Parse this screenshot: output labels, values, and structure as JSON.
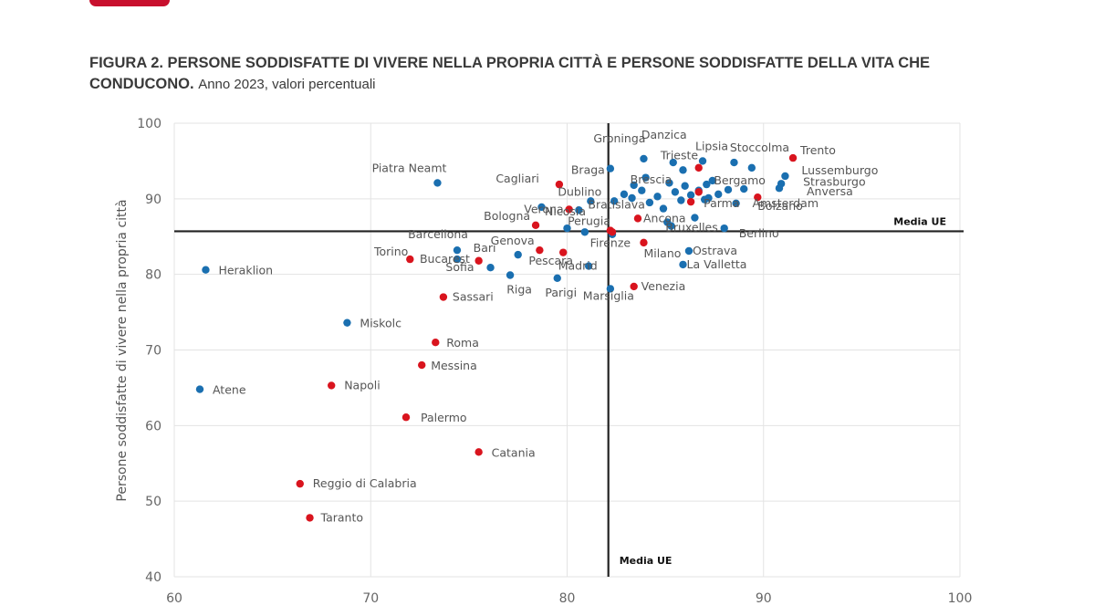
{
  "title": {
    "main": "FIGURA 2. PERSONE SODDISFATTE DI VIVERE NELLA PROPRIA CITTÀ E PERSONE SODDISFATTE DELLA VITA CHE CONDUCONO.",
    "subtitle": "Anno 2023, valori percentuali"
  },
  "colors": {
    "eu": "#1a6fb0",
    "italy": "#d9141e",
    "axis": "#222222",
    "grid": "#e3e3e3",
    "tick": "#666666",
    "label": "#555555"
  },
  "chart_data": {
    "type": "scatter",
    "title": "FIGURA 2. PERSONE SODDISFATTE DI VIVERE NELLA PROPRIA CITTÀ E PERSONE SODDISFATTE DELLA VITA CHE CONDUCONO.",
    "subtitle": "Anno 2023, valori percentuali",
    "ylabel": "Persone soddisfatte di vivere nella propria città",
    "xlim": [
      60,
      100
    ],
    "ylim": [
      40,
      100
    ],
    "xticks": [
      60,
      70,
      80,
      90,
      100
    ],
    "yticks": [
      40,
      50,
      60,
      70,
      80,
      90,
      100
    ],
    "grid": true,
    "reference_lines": [
      {
        "axis": "y",
        "value": 85.7,
        "label": "Media UE"
      },
      {
        "axis": "x",
        "value": 82.1,
        "label": "Media UE"
      }
    ],
    "series": [
      {
        "points": [
          {
            "label": "Heraklion",
            "x": 61.6,
            "y": 80.6
          },
          {
            "label": "Atene",
            "x": 61.3,
            "y": 64.8
          },
          {
            "label": "Miskolc",
            "x": 68.8,
            "y": 73.6
          },
          {
            "label": "Piatra Neamt",
            "x": 73.4,
            "y": 92.1
          },
          {
            "label": "Barcellona",
            "x": 74.4,
            "y": 83.2
          },
          {
            "label": "Bucarest",
            "x": 74.4,
            "y": 82.0
          },
          {
            "label": "Sofia",
            "x": 76.1,
            "y": 80.9
          },
          {
            "label": "Riga",
            "x": 77.1,
            "y": 79.9
          },
          {
            "label": "Genova",
            "x": 77.5,
            "y": 82.6
          },
          {
            "label": "Parigi",
            "x": 79.5,
            "y": 79.5
          },
          {
            "label": "Nicosia",
            "x": 80.0,
            "y": 86.1
          },
          {
            "label": "Madrid",
            "x": 81.1,
            "y": 81.1
          },
          {
            "label": "Marsiglia",
            "x": 82.2,
            "y": 78.1
          },
          {
            "label": "Braga",
            "x": 82.2,
            "y": 94.0
          },
          {
            "label": "Bratislava",
            "x": 80.6,
            "y": 88.5
          },
          {
            "label": "Dublino",
            "x": 81.2,
            "y": 89.7
          },
          {
            "label": "Groninga",
            "x": 83.9,
            "y": 95.3
          },
          {
            "label": "Danzica",
            "x": 85.4,
            "y": 94.8
          },
          {
            "label": "Trieste",
            "x": 85.9,
            "y": 93.8
          },
          {
            "label": "Lipsia",
            "x": 86.9,
            "y": 95.0
          },
          {
            "label": "Stoccolma",
            "x": 88.5,
            "y": 94.8
          },
          {
            "label": "Brescia",
            "x": 83.4,
            "y": 91.8
          },
          {
            "label": "Bergamo",
            "x": 87.1,
            "y": 91.9
          },
          {
            "label": "Lussemburgo",
            "x": 91.1,
            "y": 93.0
          },
          {
            "label": "Strasburgo",
            "x": 90.9,
            "y": 92.0
          },
          {
            "label": "Anversa",
            "x": 90.8,
            "y": 91.4
          },
          {
            "label": "Amsterdam",
            "x": 87.2,
            "y": 90.1
          },
          {
            "label": "Bruxelles",
            "x": 85.1,
            "y": 86.9
          },
          {
            "label": "Berlino",
            "x": 88.0,
            "y": 86.1
          },
          {
            "label": "Ostrava",
            "x": 86.2,
            "y": 83.1
          },
          {
            "label": "La Valletta",
            "x": 85.9,
            "y": 81.3
          },
          {
            "label": "",
            "x": 78.7,
            "y": 88.9
          },
          {
            "label": "",
            "x": 80.9,
            "y": 85.6
          },
          {
            "label": "",
            "x": 82.3,
            "y": 85.3
          },
          {
            "label": "",
            "x": 82.4,
            "y": 89.7
          },
          {
            "label": "",
            "x": 82.9,
            "y": 90.6
          },
          {
            "label": "",
            "x": 83.3,
            "y": 90.1
          },
          {
            "label": "",
            "x": 83.8,
            "y": 91.1
          },
          {
            "label": "",
            "x": 84.2,
            "y": 89.5
          },
          {
            "label": "",
            "x": 84.6,
            "y": 90.3
          },
          {
            "label": "",
            "x": 84.9,
            "y": 88.7
          },
          {
            "label": "",
            "x": 85.2,
            "y": 92.1
          },
          {
            "label": "",
            "x": 85.5,
            "y": 90.9
          },
          {
            "label": "",
            "x": 85.8,
            "y": 89.8
          },
          {
            "label": "",
            "x": 86.0,
            "y": 91.7
          },
          {
            "label": "",
            "x": 86.3,
            "y": 90.5
          },
          {
            "label": "",
            "x": 86.5,
            "y": 87.5
          },
          {
            "label": "",
            "x": 86.7,
            "y": 91.1
          },
          {
            "label": "",
            "x": 87.0,
            "y": 89.9
          },
          {
            "label": "",
            "x": 87.4,
            "y": 92.4
          },
          {
            "label": "",
            "x": 87.7,
            "y": 90.6
          },
          {
            "label": "",
            "x": 88.2,
            "y": 91.2
          },
          {
            "label": "",
            "x": 88.6,
            "y": 89.4
          },
          {
            "label": "",
            "x": 89.0,
            "y": 91.3
          },
          {
            "label": "",
            "x": 89.4,
            "y": 94.1
          },
          {
            "label": "",
            "x": 84.0,
            "y": 92.8
          },
          {
            "label": "",
            "x": 85.3,
            "y": 86.4
          }
        ]
      },
      {
        "points": [
          {
            "label": "Trento",
            "x": 91.5,
            "y": 95.4
          },
          {
            "label": "Bolzano",
            "x": 89.7,
            "y": 90.2
          },
          {
            "label": "Parma",
            "x": 86.3,
            "y": 89.6
          },
          {
            "label": "Ancona",
            "x": 83.6,
            "y": 87.4
          },
          {
            "label": "Perugia",
            "x": 82.3,
            "y": 85.6
          },
          {
            "label": "Firenze",
            "x": 82.2,
            "y": 85.8
          },
          {
            "label": "Milano",
            "x": 83.9,
            "y": 84.2
          },
          {
            "label": "Venezia",
            "x": 83.4,
            "y": 78.4
          },
          {
            "label": "Cagliari",
            "x": 79.6,
            "y": 91.9
          },
          {
            "label": "Verona",
            "x": 80.1,
            "y": 88.6
          },
          {
            "label": "Bologna",
            "x": 78.4,
            "y": 86.5
          },
          {
            "label": "Pescara",
            "x": 78.6,
            "y": 83.2
          },
          {
            "label": "Bari",
            "x": 75.5,
            "y": 81.8
          },
          {
            "label": "Torino",
            "x": 72.0,
            "y": 82.0
          },
          {
            "label": "Sassari",
            "x": 73.7,
            "y": 77.0
          },
          {
            "label": "Roma",
            "x": 73.3,
            "y": 71.0
          },
          {
            "label": "Messina",
            "x": 72.6,
            "y": 68.0
          },
          {
            "label": "Napoli",
            "x": 68.0,
            "y": 65.3
          },
          {
            "label": "Palermo",
            "x": 71.8,
            "y": 61.1
          },
          {
            "label": "Catania",
            "x": 75.5,
            "y": 56.5
          },
          {
            "label": "Reggio di Calabria",
            "x": 66.4,
            "y": 52.3
          },
          {
            "label": "Taranto",
            "x": 66.9,
            "y": 47.8
          },
          {
            "label": "",
            "x": 79.8,
            "y": 82.9
          },
          {
            "label": "",
            "x": 86.7,
            "y": 94.1
          },
          {
            "label": "",
            "x": 86.7,
            "y": 90.9
          }
        ]
      }
    ]
  }
}
